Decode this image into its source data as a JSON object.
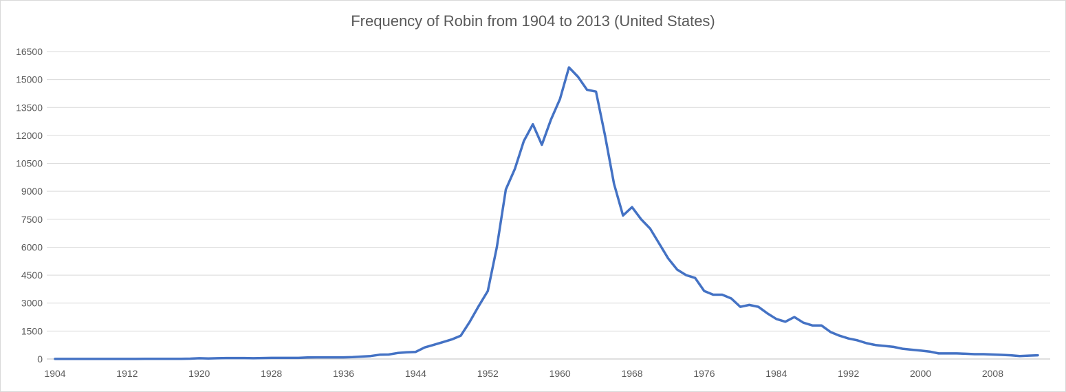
{
  "chart_data": {
    "type": "line",
    "title": "Frequency of Robin from 1904 to 2013 (United States)",
    "xlabel": "",
    "ylabel": "",
    "xlim": [
      1904,
      2013
    ],
    "ylim": [
      0,
      16500
    ],
    "y_ticks": [
      "0",
      "1500",
      "3000",
      "4500",
      "6000",
      "7500",
      "9000",
      "10500",
      "12000",
      "13500",
      "15000",
      "16500"
    ],
    "x_ticks": [
      "1904",
      "1912",
      "1920",
      "1928",
      "1936",
      "1944",
      "1952",
      "1960",
      "1968",
      "1976",
      "1984",
      "1992",
      "2000",
      "2008"
    ],
    "grid": true,
    "legend": "none",
    "series": [
      {
        "color": "#4472c4",
        "x": [
          1904,
          1905,
          1906,
          1907,
          1908,
          1909,
          1910,
          1911,
          1912,
          1913,
          1914,
          1915,
          1916,
          1917,
          1918,
          1919,
          1920,
          1921,
          1922,
          1923,
          1924,
          1925,
          1926,
          1927,
          1928,
          1929,
          1930,
          1931,
          1932,
          1933,
          1934,
          1935,
          1936,
          1937,
          1938,
          1939,
          1940,
          1941,
          1942,
          1943,
          1944,
          1945,
          1946,
          1947,
          1948,
          1949,
          1950,
          1951,
          1952,
          1953,
          1954,
          1955,
          1956,
          1957,
          1958,
          1959,
          1960,
          1961,
          1962,
          1963,
          1964,
          1965,
          1966,
          1967,
          1968,
          1969,
          1970,
          1971,
          1972,
          1973,
          1974,
          1975,
          1976,
          1977,
          1978,
          1979,
          1980,
          1981,
          1982,
          1983,
          1984,
          1985,
          1986,
          1987,
          1988,
          1989,
          1990,
          1991,
          1992,
          1993,
          1994,
          1995,
          1996,
          1997,
          1998,
          1999,
          2000,
          2001,
          2002,
          2003,
          2004,
          2005,
          2006,
          2007,
          2008,
          2009,
          2010,
          2011,
          2012,
          2013
        ],
        "values": [
          5,
          5,
          5,
          5,
          5,
          5,
          5,
          5,
          5,
          5,
          10,
          10,
          10,
          10,
          10,
          20,
          40,
          30,
          40,
          50,
          50,
          50,
          40,
          50,
          60,
          60,
          60,
          60,
          80,
          90,
          90,
          90,
          90,
          100,
          130,
          160,
          230,
          240,
          320,
          360,
          380,
          620,
          760,
          900,
          1050,
          1250,
          2000,
          2850,
          3650,
          6000,
          9100,
          10200,
          11700,
          12600,
          11500,
          12850,
          13950,
          15650,
          15150,
          14450,
          14350,
          12000,
          9400,
          7700,
          8150,
          7500,
          7000,
          6200,
          5400,
          4800,
          4500,
          4350,
          3650,
          3450,
          3450,
          3250,
          2800,
          2900,
          2800,
          2450,
          2150,
          2000,
          2250,
          1950,
          1800,
          1800,
          1450,
          1250,
          1100,
          1000,
          850,
          750,
          700,
          650,
          550,
          500,
          450,
          400,
          300,
          300,
          300,
          280,
          260,
          260,
          240,
          220,
          200,
          160,
          180,
          200
        ]
      }
    ]
  }
}
